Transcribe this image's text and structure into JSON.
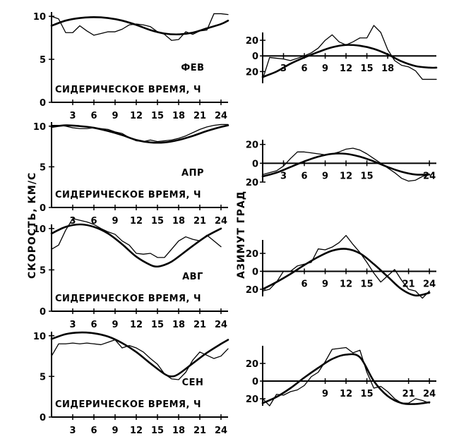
{
  "labels": {
    "speed_axis": "СКОРОСТЬ, КМ/С",
    "azimuth_axis": "АЗИМУТ ГРАД"
  },
  "chart_data": [
    {
      "type": "line",
      "panel": "speed",
      "month": "ФЕВ",
      "xlabel": "СИДЕРИЧЕСКОЕ ВРЕМЯ, Ч",
      "xticks": [
        "3",
        "6",
        "9",
        "12",
        "15",
        "18",
        "21",
        "24"
      ],
      "yticks": [
        "0",
        "5",
        "10"
      ],
      "xlim": [
        0,
        25
      ],
      "ylim": [
        0,
        10.5
      ],
      "series": [
        {
          "style": "thin",
          "x": [
            0,
            1,
            2,
            3,
            4,
            5,
            6,
            7,
            8,
            9,
            10,
            11,
            12,
            13,
            14,
            15,
            16,
            17,
            18,
            19,
            20,
            21,
            22,
            23,
            24,
            25
          ],
          "y": [
            10,
            9.7,
            8.1,
            8.1,
            8.9,
            8.3,
            7.8,
            8.0,
            8.2,
            8.2,
            8.5,
            9.0,
            9.1,
            9.0,
            8.8,
            8.2,
            7.9,
            7.2,
            7.3,
            8.2,
            7.9,
            8.3,
            8.4,
            10.3,
            10.3,
            10.2
          ]
        },
        {
          "style": "smooth",
          "x": [
            0,
            2,
            4,
            6,
            8,
            10,
            12,
            14,
            16,
            18,
            20,
            22,
            24,
            25
          ],
          "y": [
            8.9,
            9.5,
            9.8,
            9.9,
            9.8,
            9.5,
            9.0,
            8.4,
            8.0,
            7.9,
            8.1,
            8.6,
            9.1,
            9.5
          ]
        }
      ]
    },
    {
      "type": "line",
      "panel": "azimuth",
      "xticks": [
        "3",
        "6",
        "9",
        "12",
        "15",
        "18"
      ],
      "yticks": [
        "20",
        "0",
        "20"
      ],
      "xlim": [
        0,
        25
      ],
      "ylim": [
        -35,
        30
      ],
      "series": [
        {
          "style": "thin",
          "x": [
            0,
            1,
            2,
            3,
            4,
            5,
            6,
            7,
            8,
            9,
            10,
            11,
            12,
            13,
            14,
            15,
            16,
            17,
            18,
            19,
            20,
            21,
            22,
            23,
            24,
            25
          ],
          "y": [
            -30,
            -2,
            -3,
            -4,
            -6,
            -3,
            0,
            4,
            10,
            20,
            27,
            18,
            14,
            18,
            23,
            23,
            39,
            30,
            8,
            -6,
            -12,
            -14,
            -19,
            -30,
            -30,
            -30
          ]
        },
        {
          "style": "smooth",
          "x": [
            0,
            2,
            4,
            6,
            8,
            10,
            12,
            14,
            16,
            18,
            20,
            22,
            24,
            25
          ],
          "y": [
            -27,
            -20,
            -10,
            -2,
            5,
            11,
            14,
            13,
            9,
            2,
            -7,
            -13,
            -15,
            -15
          ]
        }
      ]
    },
    {
      "type": "line",
      "panel": "speed",
      "month": "АПР",
      "xlabel": "СИДЕРИЧЕСКОЕ ВРЕМЯ, Ч",
      "xticks": [
        "3",
        "6",
        "9",
        "12",
        "15",
        "18",
        "21",
        "24"
      ],
      "yticks": [
        "0",
        "5",
        "10"
      ],
      "xlim": [
        0,
        25
      ],
      "ylim": [
        0,
        10.5
      ],
      "series": [
        {
          "style": "thin",
          "x": [
            0,
            1,
            2,
            3,
            4,
            5,
            6,
            7,
            8,
            9,
            10,
            11,
            12,
            13,
            14,
            15,
            16,
            17,
            18,
            19,
            20,
            21,
            22,
            23,
            24,
            25
          ],
          "y": [
            10.1,
            10.1,
            10.0,
            9.8,
            9.7,
            9.7,
            9.8,
            9.7,
            9.6,
            9.3,
            9.1,
            8.6,
            8.2,
            8.1,
            8.3,
            8.1,
            8.2,
            8.3,
            8.5,
            8.8,
            9.2,
            9.6,
            9.9,
            10.1,
            10.2,
            10.2
          ]
        },
        {
          "style": "smooth",
          "x": [
            0,
            2,
            4,
            6,
            8,
            10,
            12,
            14,
            16,
            18,
            20,
            22,
            24,
            25
          ],
          "y": [
            9.9,
            10.1,
            10.0,
            9.8,
            9.4,
            8.9,
            8.3,
            8.0,
            8.0,
            8.3,
            8.8,
            9.4,
            9.9,
            10.1
          ]
        }
      ]
    },
    {
      "type": "line",
      "panel": "azimuth",
      "xticks": [
        "3",
        "6",
        "9",
        "12",
        "15",
        "24"
      ],
      "yticks": [
        "20",
        "0",
        "20"
      ],
      "xlim": [
        0,
        25
      ],
      "ylim": [
        -20,
        25
      ],
      "series": [
        {
          "style": "thin",
          "x": [
            0,
            1,
            2,
            3,
            4,
            5,
            6,
            7,
            8,
            9,
            10,
            11,
            12,
            13,
            14,
            15,
            16,
            17,
            18,
            19,
            20,
            21,
            22,
            23,
            24
          ],
          "y": [
            -12,
            -10,
            -8,
            -3,
            5,
            12,
            12,
            11,
            10,
            9,
            10,
            12,
            15,
            16,
            14,
            10,
            5,
            0,
            -5,
            -10,
            -16,
            -19,
            -18,
            -14,
            -12
          ]
        },
        {
          "style": "smooth",
          "x": [
            0,
            2,
            4,
            6,
            8,
            10,
            12,
            14,
            16,
            18,
            20,
            22,
            24
          ],
          "y": [
            -14,
            -10,
            -4,
            2,
            7,
            10,
            10,
            7,
            2,
            -4,
            -9,
            -12,
            -12
          ]
        }
      ]
    },
    {
      "type": "line",
      "panel": "speed",
      "month": "АВГ",
      "xlabel": "СИДЕРИЧЕСКОЕ ВРЕМЯ, Ч",
      "xticks": [
        "3",
        "6",
        "9",
        "12",
        "15",
        "18",
        "21",
        "24"
      ],
      "yticks": [
        "0",
        "5",
        "10"
      ],
      "xlim": [
        0,
        25
      ],
      "ylim": [
        0,
        10.5
      ],
      "series": [
        {
          "style": "thin",
          "x": [
            0,
            1,
            2,
            3,
            4,
            5,
            6,
            7,
            8,
            9,
            10,
            11,
            12,
            13,
            14,
            15,
            16,
            17,
            18,
            19,
            20,
            21,
            22,
            23,
            24
          ],
          "y": [
            7.5,
            8.0,
            9.8,
            11.2,
            11.0,
            10.8,
            10.5,
            10.0,
            9.6,
            9.3,
            8.5,
            8.0,
            7.0,
            6.9,
            7.0,
            6.5,
            6.5,
            7.5,
            8.5,
            9.0,
            8.7,
            8.5,
            9.2,
            8.5,
            7.8
          ]
        },
        {
          "style": "smooth",
          "x": [
            0,
            2,
            4,
            6,
            8,
            10,
            12,
            14,
            15,
            16,
            17,
            18,
            20,
            22,
            24
          ],
          "y": [
            9.4,
            10.2,
            10.5,
            10.2,
            9.4,
            8.1,
            6.6,
            5.6,
            5.4,
            5.6,
            6.0,
            6.6,
            7.9,
            9.1,
            10.0
          ]
        }
      ]
    },
    {
      "type": "line",
      "panel": "azimuth",
      "xticks": [
        "6",
        "9",
        "12",
        "15",
        "21",
        "24"
      ],
      "yticks": [
        "20",
        "0",
        "20"
      ],
      "xlim": [
        0,
        25
      ],
      "ylim": [
        -28,
        35
      ],
      "series": [
        {
          "style": "thin",
          "x": [
            0,
            1,
            2,
            3,
            4,
            5,
            6,
            7,
            8,
            9,
            10,
            11,
            12,
            13,
            14,
            15,
            16,
            17,
            18,
            19,
            20,
            21,
            22,
            23,
            24
          ],
          "y": [
            -22,
            -20,
            -12,
            0,
            0,
            6,
            8,
            10,
            25,
            24,
            27,
            32,
            40,
            30,
            21,
            10,
            -2,
            -12,
            -5,
            2,
            -10,
            -20,
            -22,
            -30,
            -22
          ]
        },
        {
          "style": "smooth",
          "x": [
            0,
            2,
            4,
            6,
            8,
            10,
            12,
            14,
            16,
            18,
            20,
            22,
            24
          ],
          "y": [
            -20,
            -12,
            -3,
            7,
            16,
            23,
            25,
            20,
            8,
            -6,
            -20,
            -27,
            -24
          ]
        }
      ]
    },
    {
      "type": "line",
      "panel": "speed",
      "month": "СЕН",
      "xlabel": "СИДЕРИЧЕСКОЕ ВРЕМЯ, Ч",
      "xticks": [
        "3",
        "6",
        "9",
        "12",
        "15",
        "18",
        "21",
        "24"
      ],
      "yticks": [
        "0",
        "5",
        "10"
      ],
      "xlim": [
        0,
        25
      ],
      "ylim": [
        0,
        10.5
      ],
      "series": [
        {
          "style": "thin",
          "x": [
            0,
            1,
            2,
            3,
            4,
            5,
            6,
            7,
            8,
            9,
            10,
            11,
            12,
            13,
            14,
            15,
            16,
            17,
            18,
            19,
            20,
            21,
            22,
            23,
            24,
            25
          ],
          "y": [
            7.5,
            9.0,
            9.0,
            9.1,
            9.0,
            9.1,
            9.0,
            8.9,
            9.2,
            9.5,
            8.5,
            8.8,
            8.5,
            8.0,
            7.2,
            6.5,
            5.3,
            4.7,
            4.6,
            5.5,
            7.0,
            8.0,
            7.6,
            7.2,
            7.5,
            8.4
          ]
        },
        {
          "style": "smooth",
          "x": [
            0,
            2,
            4,
            6,
            8,
            10,
            12,
            14,
            16,
            17,
            18,
            20,
            22,
            24,
            25
          ],
          "y": [
            9.6,
            10.2,
            10.4,
            10.3,
            9.9,
            9.1,
            8.0,
            6.6,
            5.3,
            5.0,
            5.3,
            6.6,
            7.9,
            9.0,
            9.5
          ]
        }
      ]
    },
    {
      "type": "line",
      "panel": "azimuth",
      "xticks": [
        "9",
        "12",
        "15",
        "21",
        "24"
      ],
      "yticks": [
        "20",
        "0",
        "20"
      ],
      "xlim": [
        0,
        25
      ],
      "ylim": [
        -28,
        40
      ],
      "series": [
        {
          "style": "thin",
          "x": [
            0,
            1,
            2,
            3,
            4,
            5,
            6,
            7,
            8,
            9,
            10,
            11,
            12,
            13,
            14,
            15,
            16,
            17,
            18,
            19,
            20,
            21,
            22,
            23,
            24
          ],
          "y": [
            -20,
            -28,
            -15,
            -16,
            -12,
            -10,
            -5,
            5,
            10,
            22,
            36,
            37,
            38,
            32,
            35,
            10,
            -8,
            -6,
            -12,
            -20,
            -25,
            -25,
            -20,
            -22,
            -25
          ]
        },
        {
          "style": "smooth",
          "x": [
            0,
            2,
            4,
            6,
            8,
            10,
            12,
            14,
            16,
            18,
            20,
            22,
            24
          ],
          "y": [
            -25,
            -18,
            -8,
            4,
            15,
            25,
            30,
            27,
            0,
            -17,
            -25,
            -26,
            -24
          ]
        }
      ]
    }
  ]
}
